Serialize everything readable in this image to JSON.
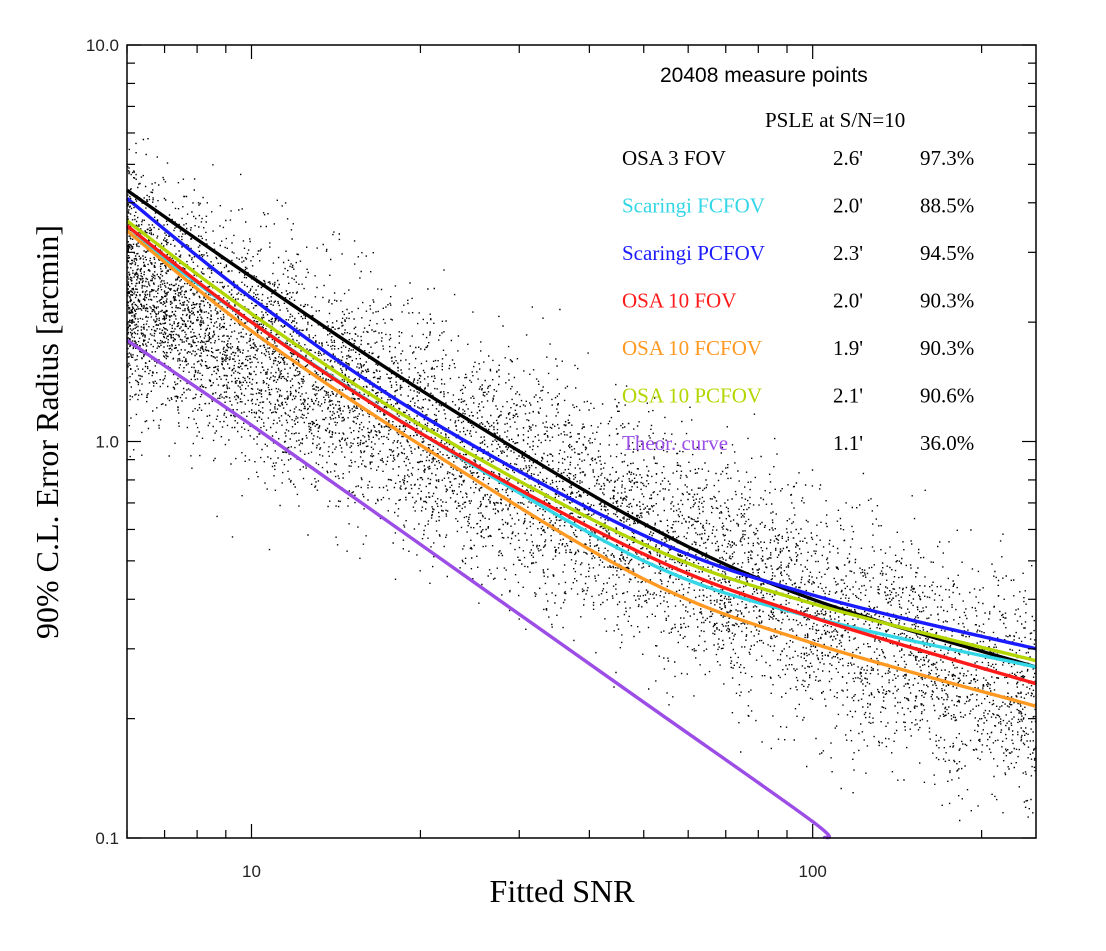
{
  "chart_data": {
    "type": "line",
    "xlabel": "Fitted SNR",
    "ylabel": "90% C.L. Error Radius [arcmin]",
    "xscale": "log",
    "yscale": "log",
    "xlim": [
      6.0,
      250
    ],
    "ylim": [
      0.1,
      10.0
    ],
    "x_ticks": [
      {
        "value": 10,
        "label": "10"
      },
      {
        "value": 100,
        "label": "100"
      }
    ],
    "y_ticks": [
      {
        "value": 0.1,
        "label": "0.1"
      },
      {
        "value": 1.0,
        "label": "1.0"
      },
      {
        "value": 10.0,
        "label": "10.0"
      }
    ],
    "legend_position": "top-right",
    "legend": {
      "title": "20408 measure points",
      "subtitle": "PSLE at S/N=10",
      "entries": [
        {
          "name": "OSA 3 FOV",
          "value": "2.6'",
          "percent": "97.3%",
          "color": "#000000"
        },
        {
          "name": "Scaringi FCFOV",
          "value": "2.0'",
          "percent": "88.5%",
          "color": "#33d6e6"
        },
        {
          "name": "Scaringi PCFOV",
          "value": "2.3'",
          "percent": "94.5%",
          "color": "#1a1aff"
        },
        {
          "name": "OSA 10 FOV",
          "value": "2.0'",
          "percent": "90.3%",
          "color": "#ff1a1a"
        },
        {
          "name": "OSA 10 FCFOV",
          "value": "1.9'",
          "percent": "90.3%",
          "color": "#ff9922"
        },
        {
          "name": "OSA 10 PCFOV",
          "value": "2.1'",
          "percent": "90.6%",
          "color": "#b3d600"
        },
        {
          "name": "Theor. curve",
          "value": "1.1'",
          "percent": "36.0%",
          "color": "#9b4de6"
        }
      ]
    },
    "series": [
      {
        "name": "OSA 3 FOV",
        "color": "#000000",
        "x": [
          6,
          10,
          20,
          50,
          100,
          250
        ],
        "y": [
          4.3,
          2.6,
          1.35,
          0.62,
          0.4,
          0.27
        ]
      },
      {
        "name": "Scaringi FCFOV",
        "color": "#33d6e6",
        "x": [
          6,
          10,
          20,
          50,
          100,
          250
        ],
        "y": [
          3.4,
          2.0,
          1.05,
          0.5,
          0.36,
          0.27
        ]
      },
      {
        "name": "Scaringi PCFOV",
        "color": "#1a1aff",
        "x": [
          6,
          10,
          20,
          50,
          100,
          250
        ],
        "y": [
          4.1,
          2.3,
          1.17,
          0.58,
          0.41,
          0.3
        ]
      },
      {
        "name": "OSA 10 FOV",
        "color": "#ff1a1a",
        "x": [
          6,
          10,
          20,
          50,
          100,
          250
        ],
        "y": [
          3.5,
          2.0,
          1.05,
          0.52,
          0.36,
          0.245
        ]
      },
      {
        "name": "OSA 10 FCFOV",
        "color": "#ff9922",
        "x": [
          6,
          10,
          20,
          50,
          100,
          250
        ],
        "y": [
          3.4,
          1.9,
          0.98,
          0.45,
          0.31,
          0.215
        ]
      },
      {
        "name": "OSA 10 PCFOV",
        "color": "#b3d600",
        "x": [
          6,
          10,
          20,
          50,
          100,
          250
        ],
        "y": [
          3.6,
          2.1,
          1.1,
          0.55,
          0.39,
          0.28
        ]
      },
      {
        "name": "Theor. curve",
        "color": "#9b4de6",
        "x": [
          6,
          10,
          20,
          50,
          100,
          105
        ],
        "y": [
          1.8,
          1.1,
          0.55,
          0.22,
          0.11,
          0.1
        ]
      }
    ],
    "scatter": {
      "name": "measure points",
      "count": 20408,
      "rendered_sample": 9000,
      "color": "#000000"
    }
  }
}
